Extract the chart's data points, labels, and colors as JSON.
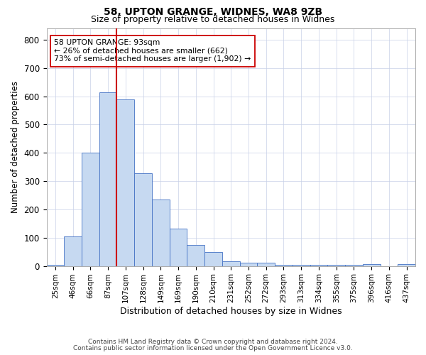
{
  "title1": "58, UPTON GRANGE, WIDNES, WA8 9ZB",
  "title2": "Size of property relative to detached houses in Widnes",
  "xlabel": "Distribution of detached houses by size in Widnes",
  "ylabel": "Number of detached properties",
  "bar_labels": [
    "25sqm",
    "46sqm",
    "66sqm",
    "87sqm",
    "107sqm",
    "128sqm",
    "149sqm",
    "169sqm",
    "190sqm",
    "210sqm",
    "231sqm",
    "252sqm",
    "272sqm",
    "293sqm",
    "313sqm",
    "334sqm",
    "355sqm",
    "375sqm",
    "396sqm",
    "416sqm",
    "437sqm"
  ],
  "bar_heights": [
    5,
    105,
    400,
    615,
    590,
    328,
    235,
    133,
    75,
    50,
    17,
    12,
    12,
    5,
    5,
    5,
    5,
    5,
    7,
    0,
    7
  ],
  "bar_color": "#c6d9f1",
  "bar_edge_color": "#4472c4",
  "vline_x_bar": 3,
  "vline_color": "#cc0000",
  "annotation_text": "58 UPTON GRANGE: 93sqm\n← 26% of detached houses are smaller (662)\n73% of semi-detached houses are larger (1,902) →",
  "annotation_box_color": "#ffffff",
  "annotation_box_edge": "#cc0000",
  "ylim": [
    0,
    840
  ],
  "yticks": [
    0,
    100,
    200,
    300,
    400,
    500,
    600,
    700,
    800
  ],
  "footer1": "Contains HM Land Registry data © Crown copyright and database right 2024.",
  "footer2": "Contains public sector information licensed under the Open Government Licence v3.0.",
  "bg_color": "#ffffff",
  "grid_color": "#c8d0e8"
}
